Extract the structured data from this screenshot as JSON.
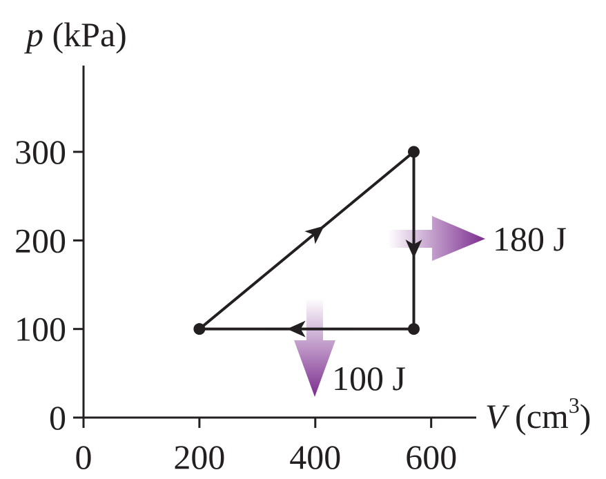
{
  "chart_data": {
    "type": "line",
    "ylabel": {
      "symbol": "p",
      "unit": " (kPa)"
    },
    "xlabel": {
      "symbol": "V",
      "unit": " (cm",
      "exponent": "3",
      "close": ")"
    },
    "xlim": [
      0,
      700
    ],
    "ylim": [
      0,
      400
    ],
    "x_ticks": [
      0,
      200,
      400,
      600
    ],
    "y_ticks": [
      0,
      100,
      200,
      300
    ],
    "x_tick_labels": [
      "0",
      "200",
      "400",
      "600"
    ],
    "y_tick_labels": [
      "0",
      "100",
      "200",
      "300"
    ],
    "grid": false,
    "points": [
      {
        "x": 200,
        "y": 100
      },
      {
        "x": 570,
        "y": 300
      },
      {
        "x": 570,
        "y": 100
      }
    ],
    "segments": [
      {
        "from": 0,
        "to": 1,
        "direction": "forward"
      },
      {
        "from": 1,
        "to": 2,
        "direction": "forward"
      },
      {
        "from": 2,
        "to": 0,
        "direction": "forward"
      }
    ],
    "heat_flows": [
      {
        "label": "180 J",
        "direction": "out-right"
      },
      {
        "label": "100 J",
        "direction": "out-down"
      }
    ],
    "colors": {
      "line": "#231f20",
      "heat_arrow": "#7b2d8e"
    }
  }
}
